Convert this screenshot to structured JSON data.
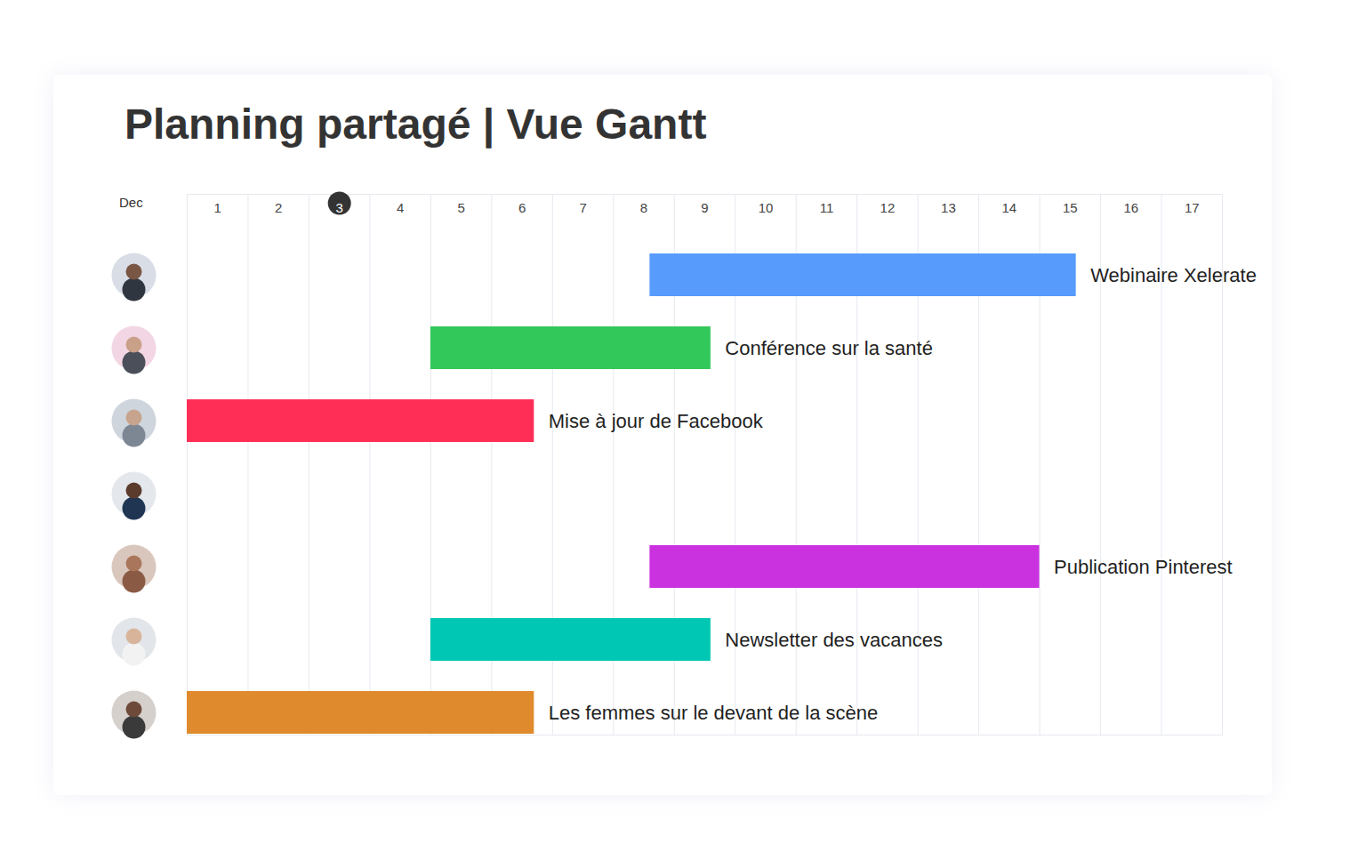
{
  "chart_data": {
    "type": "gantt",
    "title": "Planning partagé | Vue Gantt",
    "xlabel": "Dec",
    "xlim": [
      0.5,
      17.5
    ],
    "xticks": [
      1,
      2,
      3,
      4,
      5,
      6,
      7,
      8,
      9,
      10,
      11,
      12,
      13,
      14,
      15,
      16,
      17
    ],
    "today": 3,
    "grid": true,
    "tasks": [
      {
        "name": "Webinaire Xelerate",
        "start": 8.1,
        "end": 15.1,
        "color": "#579bfc"
      },
      {
        "name": "Conférence sur la santé",
        "start": 4.5,
        "end": 9.1,
        "color": "#33c85a"
      },
      {
        "name": "Mise à jour de Facebook",
        "start": 0.5,
        "end": 6.2,
        "color": "#fe2e56"
      },
      null,
      {
        "name": "Publication Pinterest",
        "start": 8.1,
        "end": 14.5,
        "color": "#c932de"
      },
      {
        "name": "Newsletter des vacances",
        "start": 4.5,
        "end": 9.1,
        "color": "#00c7b3"
      },
      {
        "name": "Les femmes sur le devant de la scène",
        "start": 0.5,
        "end": 6.2,
        "color": "#e08a2e"
      }
    ]
  }
}
